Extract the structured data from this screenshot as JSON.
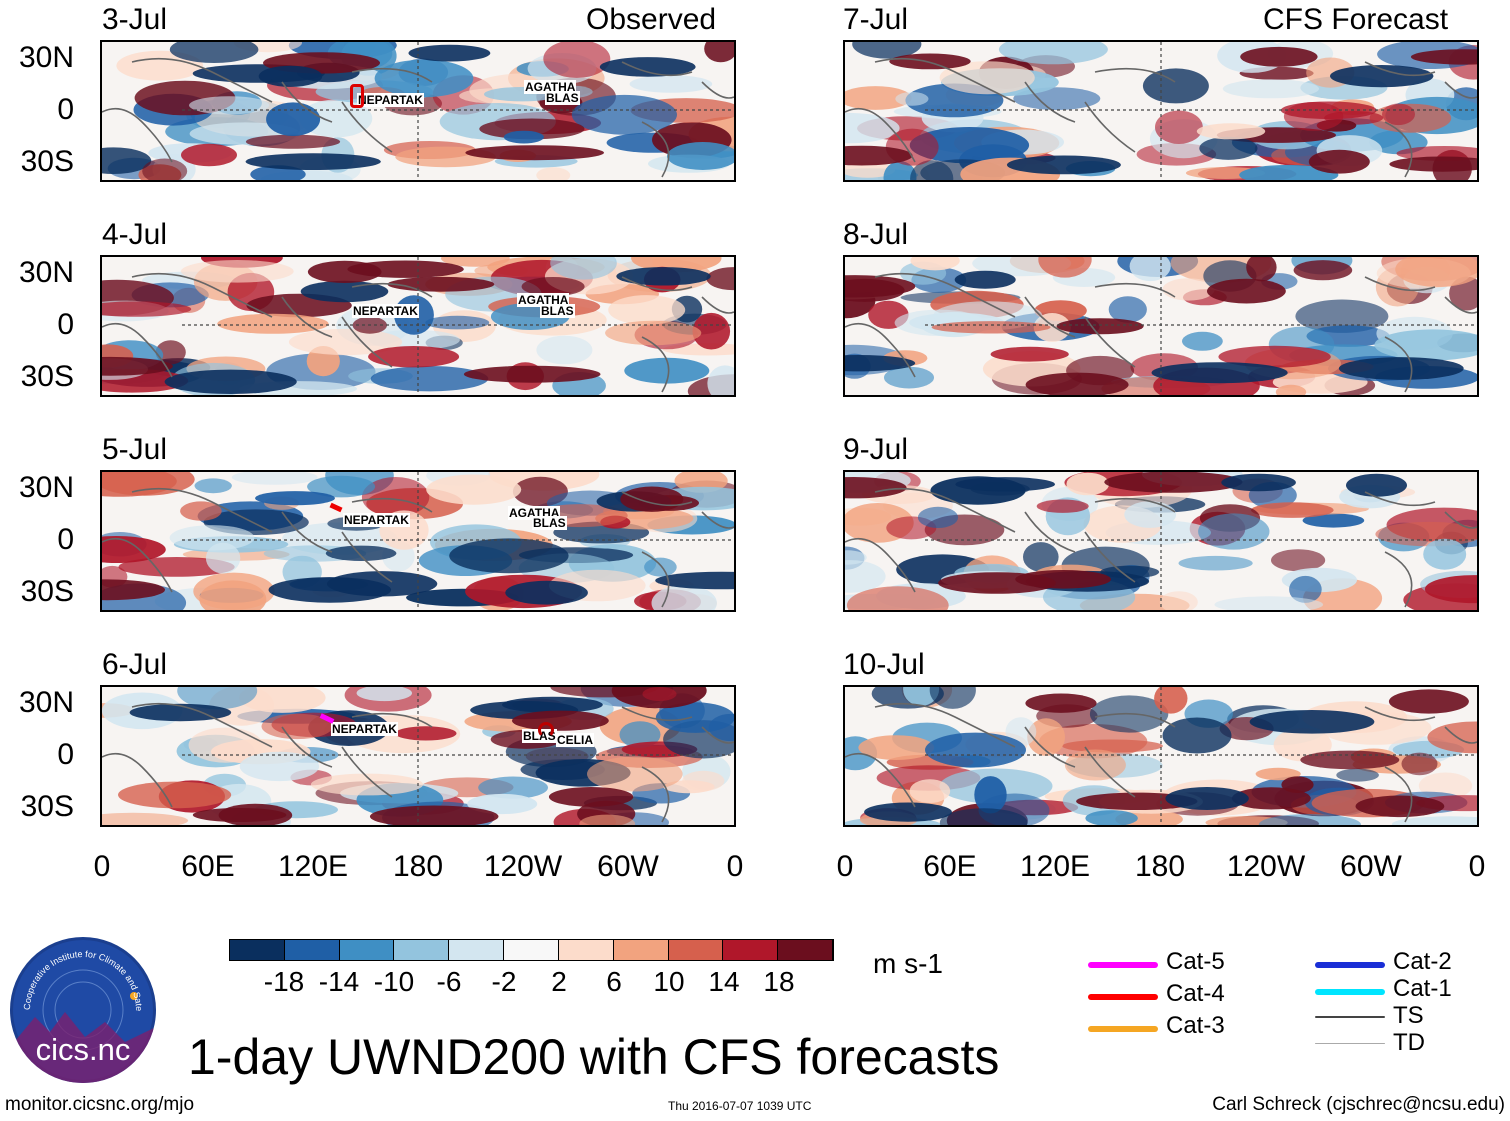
{
  "title": "1-day UWND200 with CFS forecasts",
  "headers": {
    "observed": "Observed",
    "forecast": "CFS Forecast"
  },
  "observed_dates": [
    "3-Jul",
    "4-Jul",
    "5-Jul",
    "6-Jul"
  ],
  "forecast_dates": [
    "7-Jul",
    "8-Jul",
    "9-Jul",
    "10-Jul"
  ],
  "lat_ticks": [
    "30N",
    "0",
    "30S"
  ],
  "lon_ticks": [
    "0",
    "60E",
    "120E",
    "180",
    "120W",
    "60W",
    "0"
  ],
  "colorbar": {
    "colors": [
      "#0a2f5e",
      "#1f5fa6",
      "#3f8fc4",
      "#93c4de",
      "#d3e6f0",
      "#f8f8f8",
      "#fcdccb",
      "#f2a37f",
      "#d6604d",
      "#b0172a",
      "#6b0e1e"
    ],
    "ticks": [
      "-18",
      "-14",
      "-10",
      "-6",
      "-2",
      "2",
      "6",
      "10",
      "14",
      "18"
    ],
    "units": "m s-1"
  },
  "storm_labels": {
    "p0": [
      "NEPARTAK",
      "AGATHA",
      "BLAS"
    ],
    "p1": [
      "NEPARTAK",
      "AGATHA",
      "BLAS"
    ],
    "p2": [
      "NEPARTAK",
      "AGATHA",
      "BLAS"
    ],
    "p3": [
      "NEPARTAK",
      "BLAS",
      "CELIA"
    ]
  },
  "legend": [
    {
      "label": "Cat-5",
      "color": "#ff00ff"
    },
    {
      "label": "Cat-4",
      "color": "#ff0000"
    },
    {
      "label": "Cat-3",
      "color": "#f5a623"
    },
    {
      "label": "Cat-2",
      "color": "#1a2fd6"
    },
    {
      "label": "Cat-1",
      "color": "#00e5ff"
    },
    {
      "label": "TS",
      "color": "#444444"
    },
    {
      "label": "TD",
      "color": "#aaaaaa"
    }
  ],
  "logo": {
    "name": "cics.nc",
    "ring_text": "Cooperative Institute for Climate and Satellites"
  },
  "footer": {
    "url": "monitor.cicsnc.org/mjo",
    "timestamp": "Thu 2016-07-07 1039 UTC",
    "author": "Carl Schreck (cjschrec@ncsu.edu)"
  }
}
